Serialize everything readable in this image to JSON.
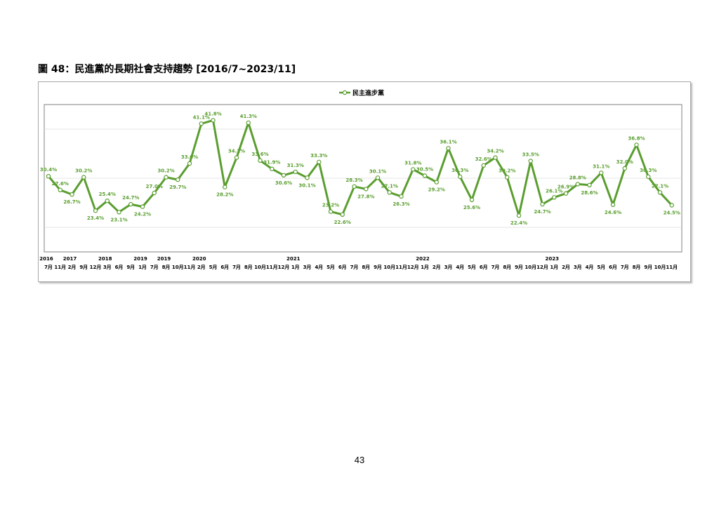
{
  "page": {
    "caption": "圖 48：民進黨的長期社會支持趨勢  [2016/7~2023/11]",
    "page_number": "43"
  },
  "colors": {
    "series": "#5a9e2f",
    "marker_fill": "#ffffff",
    "grid": "#dddddd",
    "border": "#808080"
  },
  "chart_data": {
    "type": "line",
    "title": "",
    "legend": {
      "entries": [
        "民主進步黨"
      ],
      "position": "top-center"
    },
    "ylim": [
      15,
      45
    ],
    "grid": true,
    "month_labels": [
      "7月",
      "11月",
      "2月",
      "9月",
      "12月",
      "3月",
      "6月",
      "9月",
      "1月",
      "7月",
      "8月",
      "10月",
      "11月",
      "2月",
      "5月",
      "6月",
      "7月",
      "8月",
      "10月",
      "11月",
      "12月",
      "1月",
      "3月",
      "4月",
      "5月",
      "6月",
      "7月",
      "8月",
      "9月",
      "10月",
      "11月",
      "12月",
      "1月",
      "2月",
      "3月",
      "4月",
      "5月",
      "6月",
      "7月",
      "8月",
      "9月",
      "10月",
      "12月",
      "1月",
      "2月",
      "3月",
      "4月",
      "5月",
      "6月",
      "7月",
      "8月",
      "9月",
      "10月",
      "11月"
    ],
    "year_labels": [
      {
        "label": "2016",
        "index": 0
      },
      {
        "label": "2017",
        "index": 2
      },
      {
        "label": "2018",
        "index": 5
      },
      {
        "label": "2019",
        "index": 8
      },
      {
        "label": "2019",
        "index": 10
      },
      {
        "label": "2020",
        "index": 13
      },
      {
        "label": "2021",
        "index": 21
      },
      {
        "label": "2022",
        "index": 32
      },
      {
        "label": "2023",
        "index": 43
      }
    ],
    "series": [
      {
        "name": "民主進步黨",
        "values": [
          30.4,
          27.6,
          26.7,
          30.2,
          23.4,
          25.4,
          23.1,
          24.7,
          24.2,
          27.0,
          30.2,
          29.7,
          33.0,
          41.1,
          41.8,
          28.2,
          34.2,
          41.3,
          33.6,
          31.9,
          30.6,
          31.3,
          30.1,
          33.3,
          23.2,
          22.6,
          28.3,
          27.8,
          30.1,
          27.1,
          26.3,
          31.8,
          30.5,
          29.2,
          36.1,
          30.3,
          25.6,
          32.6,
          34.2,
          30.2,
          22.4,
          33.5,
          24.7,
          26.1,
          26.9,
          28.8,
          28.6,
          31.1,
          24.6,
          32.0,
          36.8,
          30.3,
          27.1,
          24.5
        ],
        "labels": [
          "30.4%",
          "27.6%",
          "26.7%",
          "30.2%",
          "23.4%",
          "25.4%",
          "23.1%",
          "24.7%",
          "24.2%",
          "27.0%",
          "30.2%",
          "29.7%",
          "33.0%",
          "41.1%",
          "41.8%",
          "28.2%",
          "34.2%",
          "41.3%",
          "33.6%",
          "31.9%",
          "30.6%",
          "31.3%",
          "30.1%",
          "33.3%",
          "23.2%",
          "22.6%",
          "28.3%",
          "27.8%",
          "30.1%",
          "27.1%",
          "26.3%",
          "31.8%",
          "30.5%",
          "29.2%",
          "36.1%",
          "30.3%",
          "25.6%",
          "32.6%",
          "34.2%",
          "30.2%",
          "22.4%",
          "33.5%",
          "24.7%",
          "26.1%",
          "26.9%",
          "28.8%",
          "28.6%",
          "31.1%",
          "24.6%",
          "32.0%",
          "36.8%",
          "30.3%",
          "27.1%",
          "24.5%"
        ]
      }
    ]
  }
}
